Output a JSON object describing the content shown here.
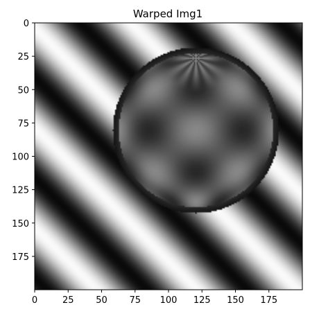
{
  "chart_data": {
    "type": "heatmap",
    "title": "Warped Img1",
    "xlabel": "",
    "ylabel": "",
    "xlim": [
      0,
      200
    ],
    "ylim": [
      200,
      0
    ],
    "xticks": [
      0,
      25,
      50,
      75,
      100,
      125,
      150,
      175
    ],
    "yticks": [
      0,
      25,
      50,
      75,
      100,
      125,
      150,
      175
    ],
    "grid": false,
    "colormap": "gray",
    "image_size": [
      200,
      200
    ],
    "background_pattern": {
      "kind": "diagonal-sinusoid",
      "direction": "top-left to bottom-right stripes",
      "period_px": 75
    },
    "sphere": {
      "center": [
        120,
        80
      ],
      "radius": 62,
      "pattern": "warped dark checker with radial pinch at top"
    }
  }
}
